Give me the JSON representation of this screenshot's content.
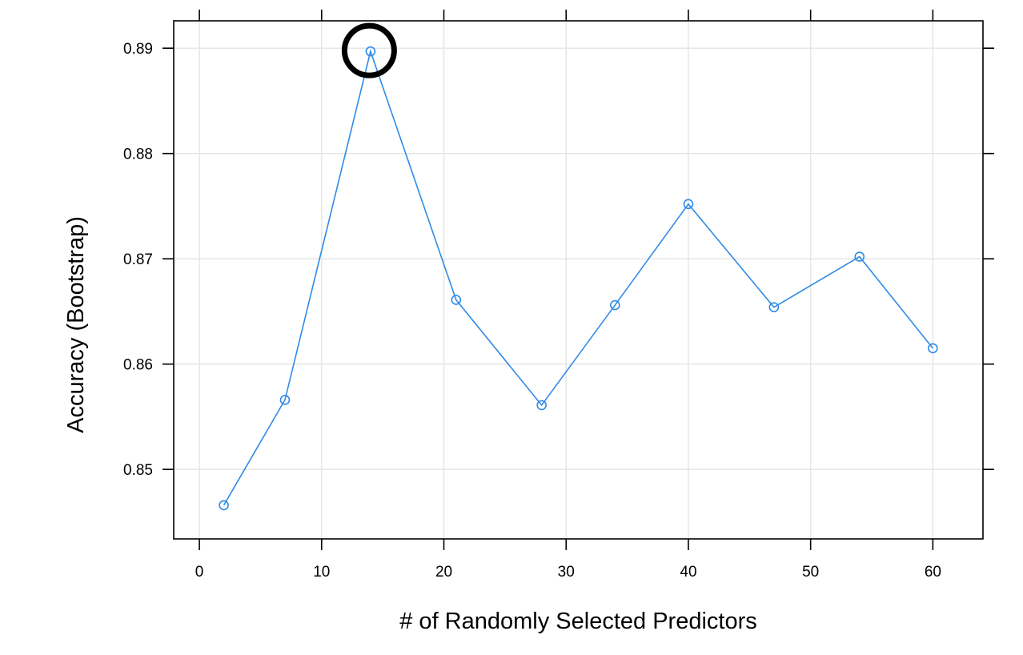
{
  "chart_data": {
    "type": "line",
    "xlabel": "# of Randomly Selected Predictors",
    "ylabel": "Accuracy (Bootstrap)",
    "xlim": [
      -2.1,
      64.1
    ],
    "ylim": [
      0.8434,
      0.8926
    ],
    "x_ticks": [
      0,
      10,
      20,
      30,
      40,
      50,
      60
    ],
    "x_tick_labels": [
      "0",
      "10",
      "20",
      "30",
      "40",
      "50",
      "60"
    ],
    "y_ticks": [
      0.85,
      0.86,
      0.87,
      0.88,
      0.89
    ],
    "y_tick_labels": [
      "0.85",
      "0.86",
      "0.87",
      "0.88",
      "0.89"
    ],
    "grid": true,
    "series": [
      {
        "color": "#2f8be6",
        "x": [
          2,
          7,
          14,
          21,
          28,
          34,
          40,
          47,
          54,
          60
        ],
        "y": [
          0.8466,
          0.8566,
          0.8897,
          0.8661,
          0.8561,
          0.8656,
          0.8752,
          0.8654,
          0.8702,
          0.8615
        ]
      }
    ],
    "highlight": {
      "x": 14,
      "y": 0.8897,
      "color": "#000000"
    }
  }
}
